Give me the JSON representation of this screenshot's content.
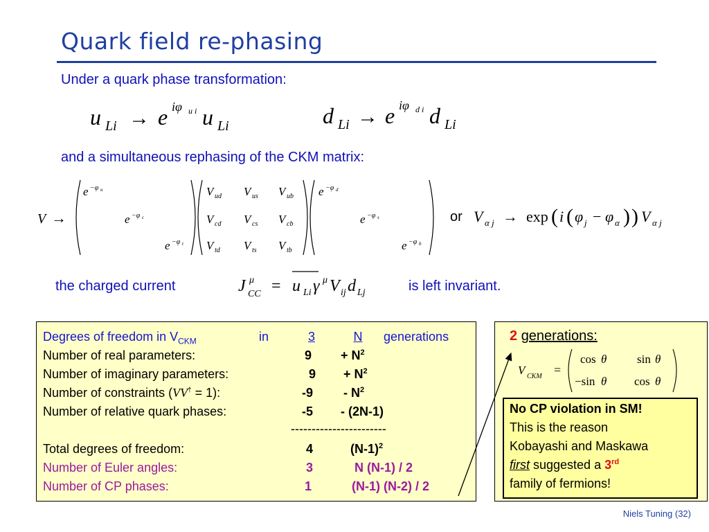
{
  "title": "Quark field re-phasing",
  "intro": "Under a quark phase transformation:",
  "rephasing_text": "and a simultaneous rephasing of the CKM matrix:",
  "or_text": "or",
  "current_pre": "the charged current",
  "current_post": "is left invariant.",
  "dof_table": {
    "header": {
      "label": "Degrees of freedom in V",
      "label_sub": "CKM",
      "in": "in",
      "col3": "3",
      "colN": "N",
      "tail": "generations"
    },
    "rows": [
      {
        "label": "Number of real parameters:",
        "v3": "9",
        "vN": "+ N",
        "vN_sup": "2",
        "style": "black"
      },
      {
        "label": "Number of imaginary parameters:",
        "v3": "9",
        "vN": "+ N",
        "vN_sup": "2",
        "style": "black"
      },
      {
        "label": "Number of constraints (",
        "label_math": "VV",
        "label_sup": "†",
        "label_tail": " = 1):",
        "v3": "-9",
        "vN": "- N",
        "vN_sup": "2",
        "style": "black"
      },
      {
        "label": "Number of relative quark phases:",
        "v3": "-5",
        "vN": "- (2N-1)",
        "vN_sup": "",
        "style": "black"
      }
    ],
    "separator": "-----------------------",
    "total": {
      "label": "Total degrees of freedom:",
      "v3": "4",
      "vN": "(N-1)",
      "vN_sup": "2"
    },
    "euler": {
      "label": "Number of Euler angles:",
      "v3": "3",
      "vN": "N (N-1) / 2"
    },
    "cp": {
      "label": "Number of CP phases:",
      "v3": "1",
      "vN": "(N-1) (N-2) / 2"
    }
  },
  "two_gen": {
    "num": "2",
    "label": "generations:"
  },
  "note": {
    "line1": "No CP violation in SM!",
    "line2": "This is the reason",
    "line3": "Kobayashi and Maskawa",
    "line4_em": "first",
    "line4_rest": " suggested a ",
    "line4_num": "3",
    "line4_sup": "rd",
    "line5": "family of fermions!"
  },
  "footer": "Niels Tuning (32)",
  "colors": {
    "title": "#1f3fa0",
    "text_blue": "#1010b8",
    "table_blue": "#1616d0",
    "purple": "#9a1aa0",
    "box": "#ffffc8",
    "red": "#e01010"
  }
}
